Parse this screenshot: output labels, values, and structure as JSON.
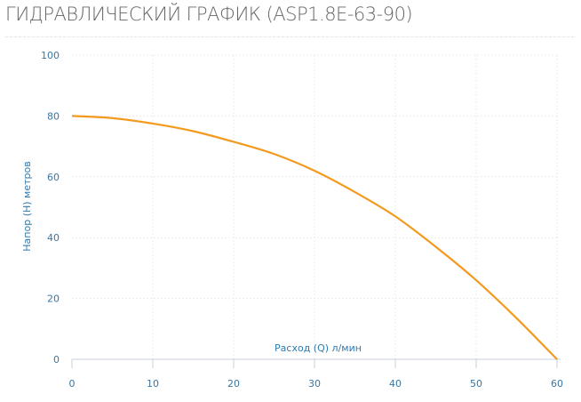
{
  "title": "ГИДРАВЛИЧЕСКИЙ ГРАФИК (ASP1.8E-63-90)",
  "chart_data": {
    "type": "line",
    "title": "",
    "xlabel": "Расход (Q) л/мин",
    "ylabel": "Напор (H) метров",
    "xlim": [
      0,
      60
    ],
    "ylim": [
      0,
      100
    ],
    "xticks": [
      0,
      10,
      20,
      30,
      40,
      50,
      60
    ],
    "yticks": [
      0,
      20,
      40,
      60,
      80,
      100
    ],
    "grid": true,
    "series": [
      {
        "color": "#f39a1e",
        "x": [
          0,
          5,
          10,
          15,
          20,
          25,
          30,
          35,
          40,
          45,
          50,
          55,
          60
        ],
        "y": [
          80,
          79.3,
          77.5,
          75,
          71.5,
          67.5,
          62,
          55,
          47,
          37,
          26,
          13.5,
          0
        ]
      }
    ]
  }
}
